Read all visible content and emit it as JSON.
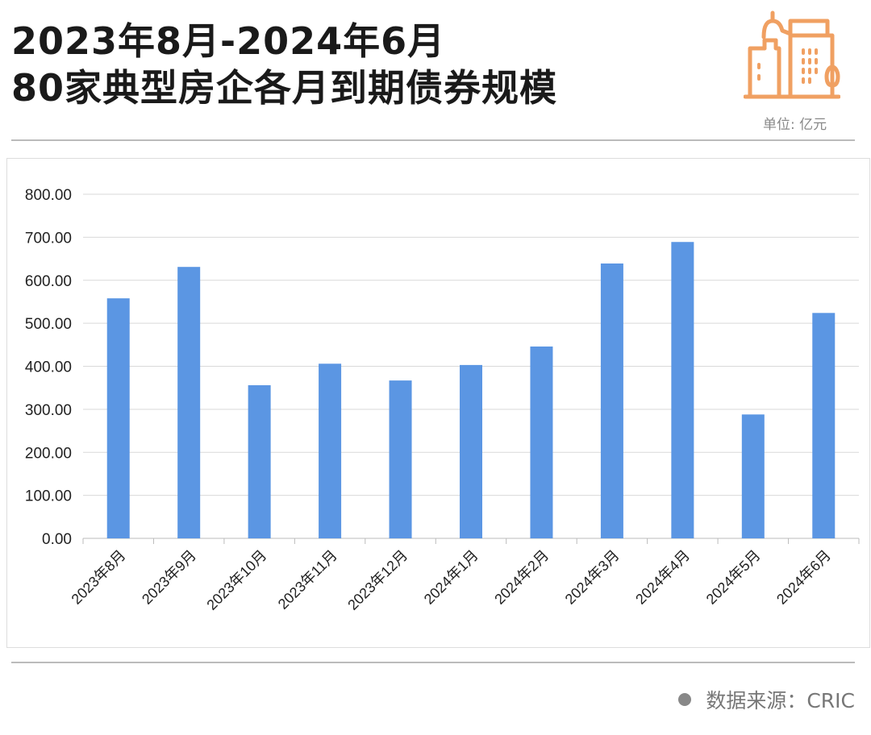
{
  "header": {
    "title_line1": "2023年8月-2024年6月",
    "title_line2": "80家典型房企各月到期债券规模",
    "unit": "单位: 亿元"
  },
  "footer": {
    "source": "数据来源：CRIC"
  },
  "colors": {
    "bar": "#5b96e3",
    "icon": "#f0a062"
  },
  "chart_data": {
    "type": "bar",
    "title": "2023年8月-2024年6月 80家典型房企各月到期债券规模",
    "ylabel": "亿元",
    "xlabel": "",
    "ylim": [
      0,
      800
    ],
    "yticks": [
      0,
      100,
      200,
      300,
      400,
      500,
      600,
      700,
      800
    ],
    "ytick_labels": [
      "0.00",
      "100.00",
      "200.00",
      "300.00",
      "400.00",
      "500.00",
      "600.00",
      "700.00",
      "800.00"
    ],
    "grid": true,
    "categories": [
      "2023年8月",
      "2023年9月",
      "2023年10月",
      "2023年11月",
      "2023年12月",
      "2024年1月",
      "2024年2月",
      "2024年3月",
      "2024年4月",
      "2024年5月",
      "2024年6月"
    ],
    "values": [
      558,
      631,
      356,
      406,
      367,
      403,
      446,
      639,
      689,
      288,
      524
    ]
  }
}
